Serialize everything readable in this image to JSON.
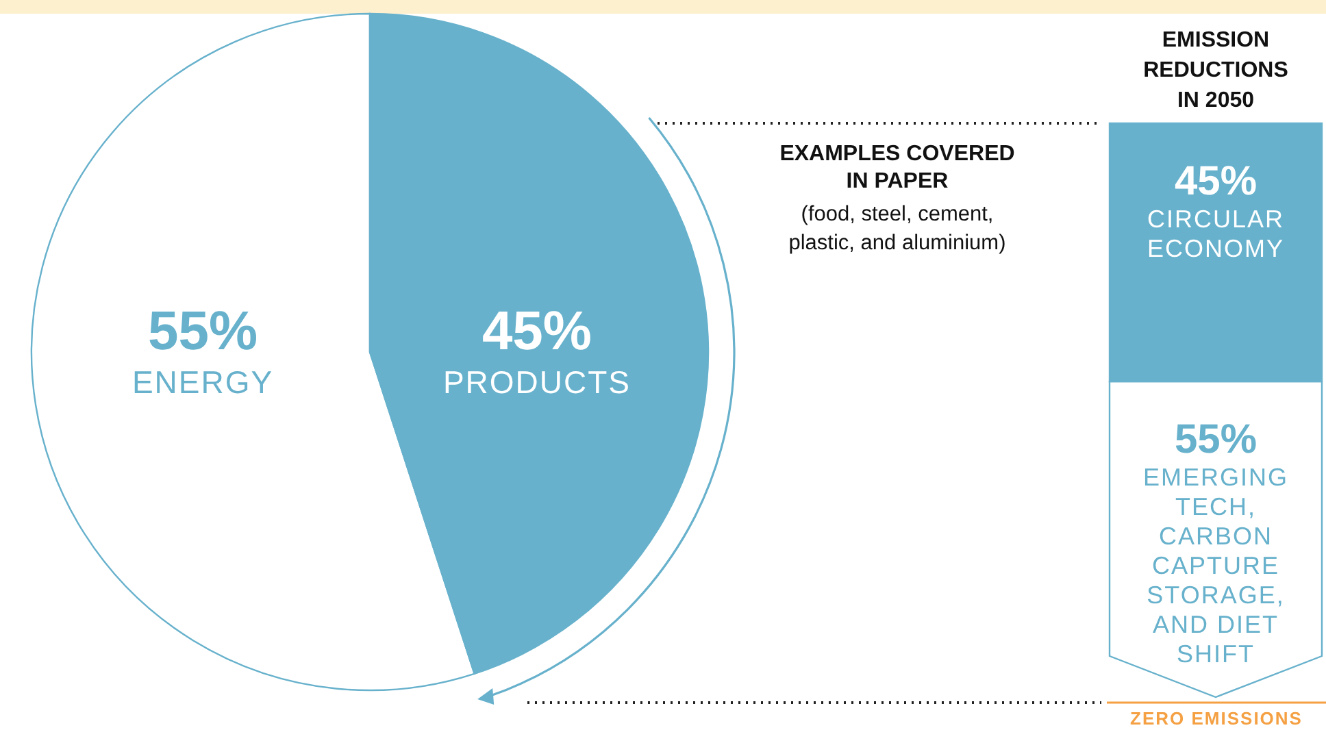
{
  "chart_data": [
    {
      "type": "pie",
      "categories": [
        "ENERGY",
        "PRODUCTS"
      ],
      "values": [
        55,
        45
      ],
      "colors": [
        "#ffffff",
        "#67b1cc"
      ],
      "value_labels": [
        "55%",
        "45%"
      ]
    },
    {
      "type": "bar",
      "title": "EMISSION REDUCTIONS IN 2050",
      "categories": [
        null
      ],
      "stacked": true,
      "tick_labels": false,
      "series": [
        {
          "name": "EMERGING TECH, CARBON CAPTURE STORAGE, AND DIET SHIFT",
          "color": "#ffffff",
          "values": [
            55
          ],
          "value_labels": [
            "55%"
          ]
        },
        {
          "name": "CIRCULAR ECONOMY",
          "color": "#67b1cc",
          "values": [
            45
          ],
          "value_labels": [
            "45%"
          ]
        }
      ],
      "annotations": [
        "EXAMPLES COVERED IN PAPER",
        "(food, steel, cement, plastic, and aluminium)",
        "ZERO EMISSIONS"
      ]
    }
  ]
}
